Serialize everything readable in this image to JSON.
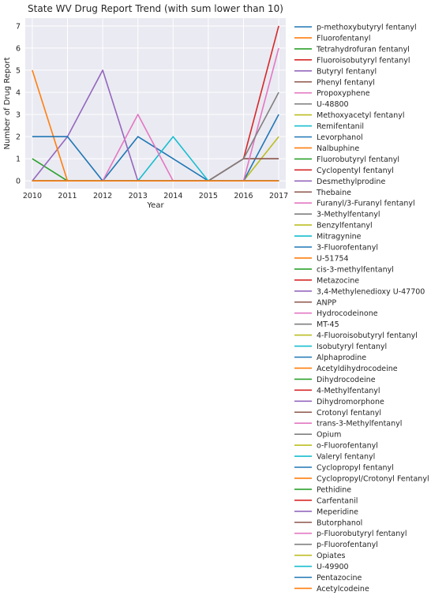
{
  "chart_data": {
    "type": "line",
    "title": "State WV Drug Report Trend (with sum lower than 10)",
    "xlabel": "Year",
    "ylabel": "Number of Drug Report",
    "x": [
      2010,
      2011,
      2012,
      2013,
      2014,
      2015,
      2016,
      2017
    ],
    "xlim": [
      2009.8,
      2017.2
    ],
    "ylim": [
      -0.35,
      7.35
    ],
    "yticks": [
      0,
      1,
      2,
      3,
      4,
      5,
      6,
      7
    ],
    "grid": true,
    "legend_position": "outside-right",
    "series": [
      {
        "name": "p-methoxybutyryl fentanyl",
        "color": "#1f77b4",
        "values": [
          0,
          0,
          0,
          0,
          0,
          0,
          0,
          0
        ]
      },
      {
        "name": "Fluorofentanyl",
        "color": "#ff7f0e",
        "values": [
          0,
          0,
          0,
          0,
          0,
          0,
          0,
          0
        ]
      },
      {
        "name": "Tetrahydrofuran fentanyl",
        "color": "#2ca02c",
        "values": [
          0,
          0,
          0,
          0,
          0,
          0,
          0,
          0
        ]
      },
      {
        "name": "Fluoroisobutyryl fentanyl",
        "color": "#d62728",
        "values": [
          0,
          0,
          0,
          0,
          0,
          0,
          0,
          0
        ]
      },
      {
        "name": "Butyryl fentanyl",
        "color": "#9467bd",
        "values": [
          0,
          0,
          0,
          0,
          0,
          0,
          0,
          0
        ]
      },
      {
        "name": "Phenyl fentanyl",
        "color": "#8c564b",
        "values": [
          0,
          0,
          0,
          0,
          0,
          0,
          0,
          0
        ]
      },
      {
        "name": "Propoxyphene",
        "color": "#e377c2",
        "values": [
          0,
          0,
          0,
          0,
          0,
          0,
          0,
          0
        ]
      },
      {
        "name": "U-48800",
        "color": "#7f7f7f",
        "values": [
          0,
          0,
          0,
          0,
          0,
          0,
          0,
          0
        ]
      },
      {
        "name": "Methoxyacetyl fentanyl",
        "color": "#bcbd22",
        "values": [
          0,
          0,
          0,
          0,
          0,
          0,
          0,
          0
        ]
      },
      {
        "name": "Remifentanil",
        "color": "#17becf",
        "values": [
          0,
          0,
          0,
          0,
          0,
          0,
          0,
          0
        ]
      },
      {
        "name": "Levorphanol",
        "color": "#1f77b4",
        "values": [
          0,
          0,
          0,
          2,
          1,
          0,
          0,
          0
        ]
      },
      {
        "name": "Nalbuphine",
        "color": "#ff7f0e",
        "values": [
          0,
          0,
          0,
          0,
          0,
          0,
          0,
          0
        ]
      },
      {
        "name": "Fluorobutyryl fentanyl",
        "color": "#2ca02c",
        "values": [
          0,
          0,
          0,
          0,
          0,
          0,
          0,
          0
        ]
      },
      {
        "name": "Cyclopentyl fentanyl",
        "color": "#d62728",
        "values": [
          0,
          0,
          0,
          0,
          0,
          0,
          0,
          0
        ]
      },
      {
        "name": "Desmethylprodine",
        "color": "#9467bd",
        "values": [
          0,
          0,
          0,
          0,
          0,
          0,
          0,
          0
        ]
      },
      {
        "name": "Thebaine",
        "color": "#8c564b",
        "values": [
          0,
          0,
          0,
          0,
          0,
          0,
          0,
          0
        ]
      },
      {
        "name": "Furanyl/3-Furanyl fentanyl",
        "color": "#e377c2",
        "values": [
          0,
          0,
          0,
          0,
          0,
          0,
          0,
          0
        ]
      },
      {
        "name": "3-Methylfentanyl",
        "color": "#7f7f7f",
        "values": [
          0,
          0,
          0,
          0,
          0,
          0,
          0,
          0
        ]
      },
      {
        "name": "Benzylfentanyl",
        "color": "#bcbd22",
        "values": [
          0,
          0,
          0,
          0,
          0,
          0,
          0,
          0
        ]
      },
      {
        "name": "Mitragynine",
        "color": "#17becf",
        "values": [
          0,
          0,
          0,
          0,
          0,
          0,
          0,
          0
        ]
      },
      {
        "name": "3-Fluorofentanyl",
        "color": "#1f77b4",
        "values": [
          0,
          0,
          0,
          0,
          0,
          0,
          0,
          0
        ]
      },
      {
        "name": "U-51754",
        "color": "#ff7f0e",
        "values": [
          0,
          0,
          0,
          0,
          0,
          0,
          0,
          0
        ]
      },
      {
        "name": "cis-3-methylfentanyl",
        "color": "#2ca02c",
        "values": [
          0,
          0,
          0,
          0,
          0,
          0,
          0,
          0
        ]
      },
      {
        "name": "Metazocine",
        "color": "#d62728",
        "values": [
          0,
          0,
          0,
          0,
          0,
          0,
          0,
          0
        ]
      },
      {
        "name": "3,4-Methylenedioxy U-47700",
        "color": "#9467bd",
        "values": [
          0,
          0,
          0,
          0,
          0,
          0,
          0,
          0
        ]
      },
      {
        "name": "ANPP",
        "color": "#8c564b",
        "values": [
          0,
          0,
          0,
          0,
          0,
          0,
          0,
          0
        ]
      },
      {
        "name": "Hydrocodeinone",
        "color": "#e377c2",
        "values": [
          0,
          0,
          0,
          0,
          0,
          0,
          0,
          0
        ]
      },
      {
        "name": "MT-45",
        "color": "#7f7f7f",
        "values": [
          0,
          0,
          0,
          0,
          0,
          0,
          0,
          0
        ]
      },
      {
        "name": "4-Fluoroisobutyryl fentanyl",
        "color": "#bcbd22",
        "values": [
          0,
          0,
          0,
          0,
          0,
          0,
          0,
          0
        ]
      },
      {
        "name": "Isobutyryl fentanyl",
        "color": "#17becf",
        "values": [
          0,
          0,
          0,
          0,
          0,
          0,
          0,
          0
        ]
      },
      {
        "name": "Alphaprodine",
        "color": "#1f77b4",
        "values": [
          0,
          0,
          0,
          0,
          0,
          0,
          0,
          0
        ]
      },
      {
        "name": "Acetyldihydrocodeine",
        "color": "#ff7f0e",
        "values": [
          0,
          0,
          0,
          0,
          0,
          0,
          0,
          0
        ]
      },
      {
        "name": "Dihydrocodeine",
        "color": "#2ca02c",
        "values": [
          1,
          0,
          0,
          0,
          0,
          0,
          0,
          0
        ]
      },
      {
        "name": "4-Methylfentanyl",
        "color": "#d62728",
        "values": [
          0,
          0,
          0,
          0,
          0,
          0,
          0,
          0
        ]
      },
      {
        "name": "Dihydromorphone",
        "color": "#9467bd",
        "values": [
          0,
          2,
          5,
          0,
          0,
          0,
          0,
          0
        ]
      },
      {
        "name": "Crotonyl fentanyl",
        "color": "#8c564b",
        "values": [
          0,
          0,
          0,
          0,
          0,
          0,
          0,
          0
        ]
      },
      {
        "name": "trans-3-Methylfentanyl",
        "color": "#e377c2",
        "values": [
          0,
          0,
          0,
          0,
          0,
          0,
          0,
          0
        ]
      },
      {
        "name": "Opium",
        "color": "#7f7f7f",
        "values": [
          0,
          0,
          0,
          0,
          0,
          0,
          0,
          0
        ]
      },
      {
        "name": "o-Fluorofentanyl",
        "color": "#bcbd22",
        "values": [
          0,
          0,
          0,
          0,
          0,
          0,
          0,
          2
        ]
      },
      {
        "name": "Valeryl fentanyl",
        "color": "#17becf",
        "values": [
          0,
          0,
          0,
          0,
          2,
          0,
          0,
          0
        ]
      },
      {
        "name": "Cyclopropyl fentanyl",
        "color": "#1f77b4",
        "values": [
          0,
          0,
          0,
          0,
          0,
          0,
          0,
          3
        ]
      },
      {
        "name": "Cyclopropyl/Crotonyl Fentanyl",
        "color": "#ff7f0e",
        "values": [
          5,
          0,
          0,
          0,
          0,
          0,
          0,
          0
        ]
      },
      {
        "name": "Pethidine",
        "color": "#2ca02c",
        "values": [
          0,
          0,
          0,
          0,
          0,
          0,
          0,
          0
        ]
      },
      {
        "name": "Carfentanil",
        "color": "#d62728",
        "values": [
          0,
          0,
          0,
          0,
          0,
          0,
          1,
          7
        ]
      },
      {
        "name": "Meperidine",
        "color": "#9467bd",
        "values": [
          0,
          0,
          0,
          0,
          0,
          0,
          0,
          0
        ]
      },
      {
        "name": "Butorphanol",
        "color": "#8c564b",
        "values": [
          0,
          0,
          0,
          0,
          0,
          0,
          1,
          1
        ]
      },
      {
        "name": "p-Fluorobutyryl fentanyl",
        "color": "#e377c2",
        "values": [
          0,
          0,
          0,
          3,
          0,
          0,
          0,
          6
        ]
      },
      {
        "name": "p-Fluorofentanyl",
        "color": "#7f7f7f",
        "values": [
          0,
          0,
          0,
          0,
          0,
          0,
          1,
          4
        ]
      },
      {
        "name": "Opiates",
        "color": "#bcbd22",
        "values": [
          0,
          0,
          0,
          0,
          0,
          0,
          0,
          0
        ]
      },
      {
        "name": "U-49900",
        "color": "#17becf",
        "values": [
          0,
          0,
          0,
          0,
          0,
          0,
          0,
          0
        ]
      },
      {
        "name": "Pentazocine",
        "color": "#1f77b4",
        "values": [
          2,
          2,
          0,
          0,
          0,
          0,
          0,
          0
        ]
      },
      {
        "name": "Acetylcodeine",
        "color": "#ff7f0e",
        "values": [
          0,
          0,
          0,
          0,
          0,
          0,
          0,
          0
        ]
      }
    ]
  }
}
